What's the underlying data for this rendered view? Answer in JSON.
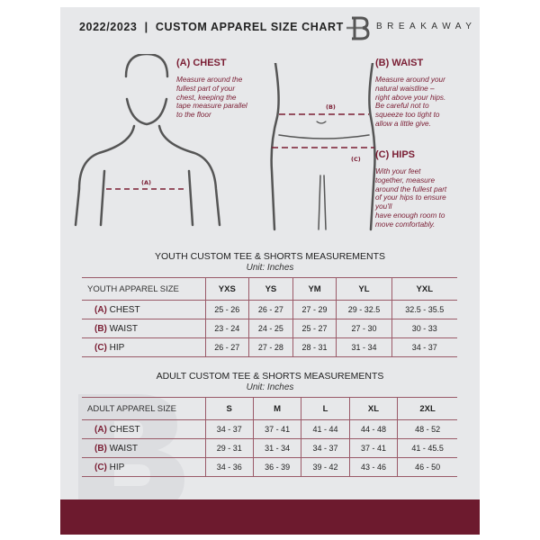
{
  "header": {
    "title": "2022/2023  |  CUSTOM APPAREL SIZE CHART",
    "brand": "BREAKAWAY",
    "logo_letter": "B"
  },
  "guides": {
    "chest": {
      "heading": "(A) CHEST",
      "text": "Measure around the\nfullest part of your\nchest, keeping the\ntape measure parallel\nto the floor",
      "marker": "(A)"
    },
    "waist": {
      "heading": "(B) WAIST",
      "text": "Measure around your\nnatural waistline –\nright above your hips.\nBe careful not to\nsqueeze too tight to\nallow a little give.",
      "marker": "(B)"
    },
    "hips": {
      "heading": "(C) HIPS",
      "text": "With your feet\ntogether, measure\naround the fullest part\nof your hips to ensure\nyou'll\nhave enough room to\nmove comfortably.",
      "marker": "(C)"
    }
  },
  "accent_color": "#6d1a2e",
  "youth": {
    "title": "YOUTH CUSTOM TEE & SHORTS MEASUREMENTS",
    "unit": "Unit: Inches",
    "header": [
      "YOUTH APPAREL SIZE",
      "YXS",
      "YS",
      "YM",
      "YL",
      "YXL"
    ],
    "rows": [
      {
        "code": "(A)",
        "name": "CHEST",
        "values": [
          "25 - 26",
          "26 - 27",
          "27 - 29",
          "29 - 32.5",
          "32.5 - 35.5"
        ]
      },
      {
        "code": "(B)",
        "name": "WAIST",
        "values": [
          "23 - 24",
          "24 - 25",
          "25 - 27",
          "27 - 30",
          "30 - 33"
        ]
      },
      {
        "code": "(C)",
        "name": "HIP",
        "values": [
          "26 - 27",
          "27 - 28",
          "28 - 31",
          "31 - 34",
          "34 - 37"
        ]
      }
    ]
  },
  "adult": {
    "title": "ADULT CUSTOM TEE & SHORTS MEASUREMENTS",
    "unit": "Unit: Inches",
    "header": [
      "ADULT APPAREL SIZE",
      "S",
      "M",
      "L",
      "XL",
      "2XL"
    ],
    "rows": [
      {
        "code": "(A)",
        "name": "CHEST",
        "values": [
          "34 - 37",
          "37 - 41",
          "41 - 44",
          "44 - 48",
          "48 - 52"
        ]
      },
      {
        "code": "(B)",
        "name": "WAIST",
        "values": [
          "29 - 31",
          "31 - 34",
          "34 - 37",
          "37 - 41",
          "41 - 45.5"
        ]
      },
      {
        "code": "(C)",
        "name": "HIP",
        "values": [
          "34 - 36",
          "36 - 39",
          "39 - 42",
          "43 - 46",
          "46 - 50"
        ]
      }
    ]
  }
}
